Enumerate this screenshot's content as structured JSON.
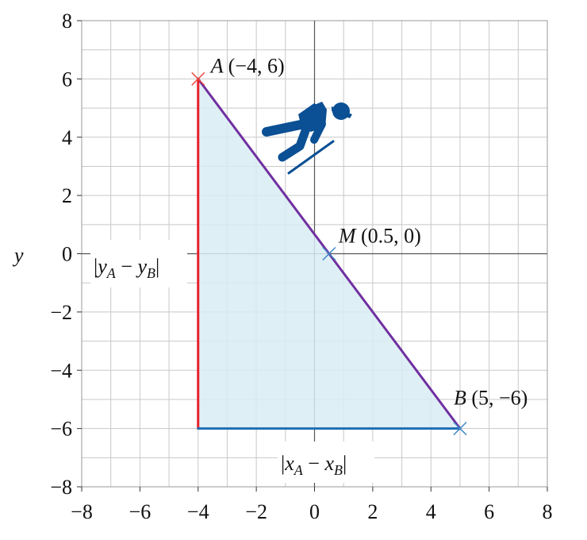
{
  "chart_data": {
    "type": "scatter",
    "title": "",
    "xlabel": "",
    "ylabel": "y",
    "xlim": [
      -8,
      8
    ],
    "ylim": [
      -8,
      8
    ],
    "grid": true,
    "minor_grid_step": 1,
    "x_ticks": [
      -8,
      -6,
      -4,
      -2,
      0,
      2,
      4,
      6,
      8
    ],
    "y_ticks": [
      -8,
      -6,
      -4,
      -2,
      0,
      2,
      4,
      6,
      8
    ],
    "x_tick_labels": [
      "−8",
      "−6",
      "−4",
      "−2",
      "0",
      "2",
      "4",
      "6",
      "8"
    ],
    "y_tick_labels": [
      "−8",
      "−6",
      "−4",
      "−2",
      "0",
      "2",
      "4",
      "6",
      "8"
    ],
    "points": [
      {
        "name": "A",
        "coord_text": "(−4, 6)",
        "x": -4,
        "y": 6,
        "color": "#e8453c"
      },
      {
        "name": "B",
        "coord_text": "(5, −6)",
        "x": 5,
        "y": -6,
        "color": "#3d85c6"
      },
      {
        "name": "M",
        "coord_text": "(0.5, 0)",
        "x": 0.5,
        "y": 0,
        "color": "#3d85c6"
      }
    ],
    "segments": [
      {
        "name": "AB",
        "from": [
          -4,
          6
        ],
        "to": [
          5,
          -6
        ],
        "color": "#7030a0"
      },
      {
        "name": "vertical-leg",
        "from": [
          -4,
          6
        ],
        "to": [
          -4,
          -6
        ],
        "color": "#e8202a"
      },
      {
        "name": "horizontal-leg",
        "from": [
          -4,
          -6
        ],
        "to": [
          5,
          -6
        ],
        "color": "#1f6fb5"
      }
    ],
    "triangle": {
      "vertices": [
        [
          -4,
          6
        ],
        [
          -4,
          -6
        ],
        [
          5,
          -6
        ]
      ],
      "fill": "#d9ecf4"
    },
    "annotations": {
      "vertical_leg": {
        "bar": "|",
        "main1": "y",
        "sub1": "A",
        "minus": " − ",
        "main2": "y",
        "sub2": "B"
      },
      "horizontal_leg": {
        "bar": "|",
        "main1": "x",
        "sub1": "A",
        "minus": " − ",
        "main2": "x",
        "sub2": "B"
      }
    },
    "icon": {
      "name": "skier-icon",
      "color": "#0b4f94"
    },
    "colors": {
      "grid": "#c8c8c8",
      "axis": "#555555",
      "frame": "#999999"
    }
  }
}
